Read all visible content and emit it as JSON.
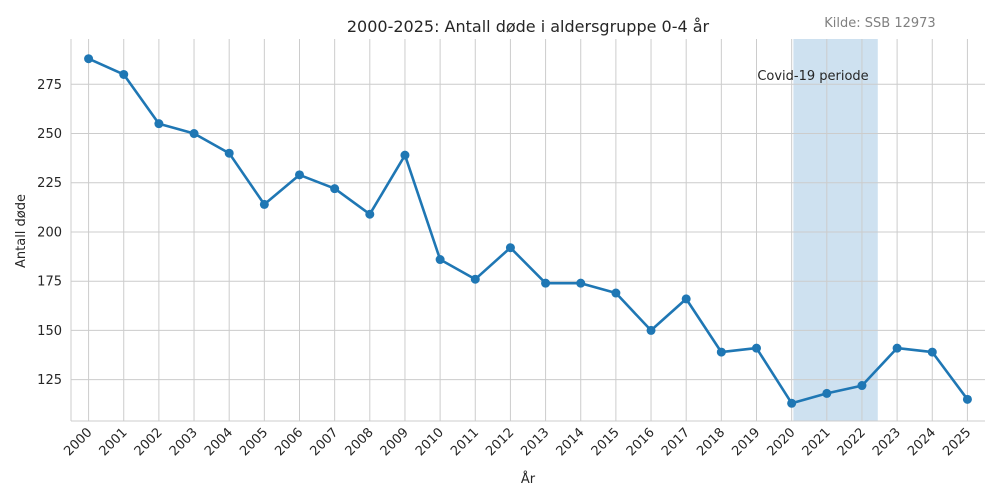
{
  "chart_data": {
    "type": "line",
    "title": "2000-2025: Antall døde i aldersgruppe 0-4 år",
    "source_note": "Kilde: SSB 12973",
    "xlabel": "År",
    "ylabel": "Antall døde",
    "x": [
      2000,
      2001,
      2002,
      2003,
      2004,
      2005,
      2006,
      2007,
      2008,
      2009,
      2010,
      2011,
      2012,
      2013,
      2014,
      2015,
      2016,
      2017,
      2018,
      2019,
      2020,
      2021,
      2022,
      2023,
      2024,
      2025
    ],
    "series": [
      {
        "values": [
          288,
          280,
          255,
          250,
          240,
          214,
          229,
          222,
          209,
          239,
          186,
          176,
          192,
          174,
          174,
          169,
          150,
          166,
          139,
          141,
          113,
          118,
          122,
          141,
          139,
          115
        ]
      }
    ],
    "yticks": [
      125,
      150,
      175,
      200,
      225,
      250,
      275
    ],
    "ylim": [
      104,
      298
    ],
    "xlim": [
      1999.5,
      2025.5
    ],
    "grid": true,
    "highlight": {
      "label": "Covid-19 periode",
      "x_start": 2020.05,
      "x_end": 2022.45
    },
    "colors": {
      "line": "#1f77b4",
      "highlight": "#9ec4e2",
      "grid": "#cccccc",
      "source_text": "#808080"
    }
  }
}
